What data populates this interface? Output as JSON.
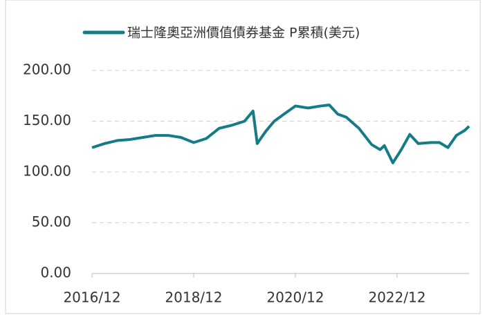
{
  "chart_data": {
    "type": "line",
    "x": [
      "2016/12",
      "2017/03",
      "2017/06",
      "2017/09",
      "2017/12",
      "2018/03",
      "2018/06",
      "2018/09",
      "2018/12",
      "2019/03",
      "2019/06",
      "2019/09",
      "2019/12",
      "2020/02",
      "2020/03",
      "2020/05",
      "2020/07",
      "2020/09",
      "2020/12",
      "2021/03",
      "2021/06",
      "2021/08",
      "2021/10",
      "2021/12",
      "2022/03",
      "2022/06",
      "2022/08",
      "2022/09",
      "2022/11",
      "2023/01",
      "2023/03",
      "2023/05",
      "2023/08",
      "2023/10",
      "2023/12",
      "2024/02",
      "2024/04",
      "2024/05"
    ],
    "series": [
      {
        "name": "瑞士隆奧亞洲價值債券基金 P累積(美元)",
        "color": "#137c87",
        "values": [
          124,
          128,
          131,
          132,
          134,
          136,
          136,
          134,
          129,
          133,
          143,
          146,
          150,
          160,
          128,
          140,
          150,
          156,
          165,
          163,
          165,
          166,
          157,
          154,
          143,
          127,
          122,
          126,
          109,
          122,
          137,
          128,
          129,
          129,
          124,
          136,
          141,
          145
        ]
      }
    ],
    "xlim": [
      "2016/12",
      "2024/05"
    ],
    "xticks": [
      "2016/12",
      "2018/12",
      "2020/12",
      "2022/12"
    ],
    "ylim": [
      0,
      200
    ],
    "yticks": [
      {
        "value": 0,
        "label": "0.00"
      },
      {
        "value": 50,
        "label": "50.00"
      },
      {
        "value": 100,
        "label": "100.00"
      },
      {
        "value": 150,
        "label": "150.00"
      },
      {
        "value": 200,
        "label": "200.00"
      }
    ],
    "grid": true,
    "legend": "top"
  }
}
